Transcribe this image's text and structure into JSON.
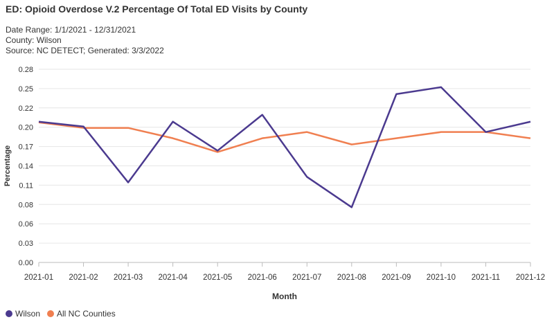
{
  "header": {
    "title": "ED: Opioid Overdose V.2 Percentage Of Total ED Visits by County",
    "date_range": "Date Range: 1/1/2021 - 12/31/2021",
    "county": "County: Wilson",
    "source": "Source: NC DETECT; Generated: 3/3/2022"
  },
  "chart_data": {
    "type": "line",
    "xlabel": "Month",
    "ylabel": "Percentage",
    "categories": [
      "2021-01",
      "2021-02",
      "2021-03",
      "2021-04",
      "2021-05",
      "2021-06",
      "2021-07",
      "2021-08",
      "2021-09",
      "2021-10",
      "2021-11",
      "2021-12"
    ],
    "yticks": [
      "0.00",
      "0.03",
      "0.06",
      "0.08",
      "0.11",
      "0.14",
      "0.17",
      "0.20",
      "0.22",
      "0.25",
      "0.28"
    ],
    "ylim": [
      0,
      0.28
    ],
    "grid": true,
    "legend_position": "bottom-left",
    "series": [
      {
        "name": "Wilson",
        "color": "#4b3a8f",
        "values": [
          0.204,
          0.197,
          0.116,
          0.204,
          0.162,
          0.214,
          0.124,
          0.08,
          0.244,
          0.254,
          0.189,
          0.204
        ]
      },
      {
        "name": "All NC Counties",
        "color": "#f07f50",
        "values": [
          0.203,
          0.195,
          0.195,
          0.18,
          0.16,
          0.18,
          0.189,
          0.171,
          0.18,
          0.189,
          0.189,
          0.18
        ]
      }
    ]
  }
}
